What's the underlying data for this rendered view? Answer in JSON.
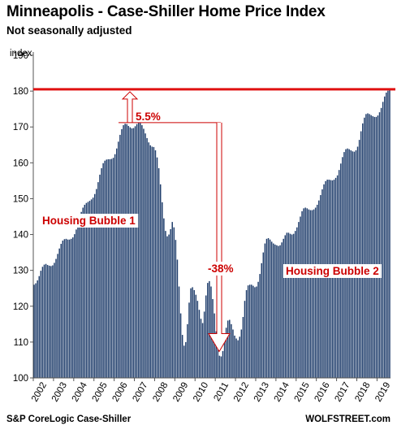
{
  "chart_data": {
    "type": "bar",
    "title": "Minneapolis - Case-Shiller Home Price Index",
    "subtitle": "Not seasonally adjusted",
    "ylabel": "index",
    "ylim": [
      100,
      190
    ],
    "yticks": [
      100,
      110,
      120,
      130,
      140,
      150,
      160,
      170,
      180,
      190
    ],
    "x_tick_labels": [
      "2002",
      "2003",
      "2004",
      "2005",
      "2006",
      "2007",
      "2008",
      "2009",
      "2010",
      "2011",
      "2012",
      "2013",
      "2014",
      "2015",
      "2016",
      "2017",
      "2018",
      "2019"
    ],
    "frequency": "monthly",
    "start": "2002-01",
    "bar_color": "#1f3d6b",
    "values": [
      126.0,
      126.4,
      127.2,
      128.4,
      129.9,
      131.0,
      131.6,
      131.8,
      131.5,
      131.3,
      131.2,
      131.4,
      132.1,
      133.2,
      134.6,
      136.1,
      137.4,
      138.3,
      138.7,
      138.8,
      138.6,
      138.6,
      138.8,
      139.2,
      140.1,
      141.4,
      143.0,
      144.8,
      146.3,
      147.5,
      148.3,
      148.8,
      149.1,
      149.4,
      149.8,
      150.3,
      151.3,
      152.7,
      154.6,
      156.7,
      158.5,
      159.9,
      160.6,
      160.9,
      161.0,
      161.0,
      161.1,
      161.4,
      162.4,
      164.0,
      165.9,
      167.8,
      169.4,
      170.5,
      170.9,
      170.8,
      170.3,
      169.9,
      169.6,
      169.7,
      170.2,
      170.8,
      171.2,
      171.1,
      170.5,
      169.5,
      168.2,
      166.9,
      165.7,
      164.9,
      164.5,
      164.4,
      163.5,
      161.5,
      158.5,
      154.0,
      149.0,
      144.5,
      141.0,
      139.5,
      140.0,
      141.5,
      143.5,
      142.0,
      138.5,
      133.0,
      125.5,
      118.0,
      112.0,
      109.0,
      110.0,
      115.0,
      121.0,
      125.0,
      125.3,
      124.5,
      123.2,
      121.5,
      119.0,
      116.5,
      115.3,
      118.5,
      123.0,
      126.5,
      127.0,
      125.5,
      122.0,
      118.0,
      113.0,
      109.0,
      106.2,
      106.0,
      107.5,
      110.5,
      114.0,
      116.0,
      116.2,
      115.0,
      113.5,
      111.8,
      111.0,
      110.5,
      111.5,
      113.5,
      117.0,
      121.5,
      124.5,
      125.8,
      126.0,
      126.0,
      125.7,
      125.3,
      125.5,
      126.8,
      129.0,
      132.0,
      135.0,
      137.5,
      138.8,
      139.0,
      138.6,
      138.0,
      137.5,
      137.2,
      137.0,
      136.8,
      137.0,
      137.8,
      138.8,
      139.8,
      140.5,
      140.5,
      140.2,
      140.0,
      140.2,
      141.0,
      142.0,
      143.5,
      145.0,
      146.5,
      147.3,
      147.5,
      147.3,
      147.0,
      146.8,
      146.8,
      147.0,
      147.5,
      148.3,
      149.5,
      151.0,
      152.6,
      154.0,
      154.9,
      155.3,
      155.3,
      155.2,
      155.1,
      155.3,
      155.8,
      156.5,
      158.0,
      159.8,
      161.6,
      163.0,
      163.8,
      164.0,
      163.8,
      163.5,
      163.2,
      163.1,
      163.5,
      164.5,
      166.4,
      168.8,
      171.0,
      172.6,
      173.6,
      173.8,
      173.6,
      173.3,
      173.0,
      172.8,
      172.8,
      173.2,
      174.1,
      175.3,
      177.0,
      178.5,
      179.6,
      180.1,
      180.3
    ],
    "reference_line": {
      "value": 180.5,
      "color": "#e01010"
    },
    "annotations": [
      {
        "text": "5.5%",
        "color": "#cc0000"
      },
      {
        "text": "Housing Bubble 1",
        "color": "#cc0000"
      },
      {
        "text": "-38%",
        "color": "#cc0000"
      },
      {
        "text": "Housing Bubble 2",
        "color": "#cc0000"
      }
    ],
    "grid": false
  },
  "footer": {
    "source": "S&P CoreLogic Case-Shiller",
    "brand": "WOLFSTREET.com"
  }
}
